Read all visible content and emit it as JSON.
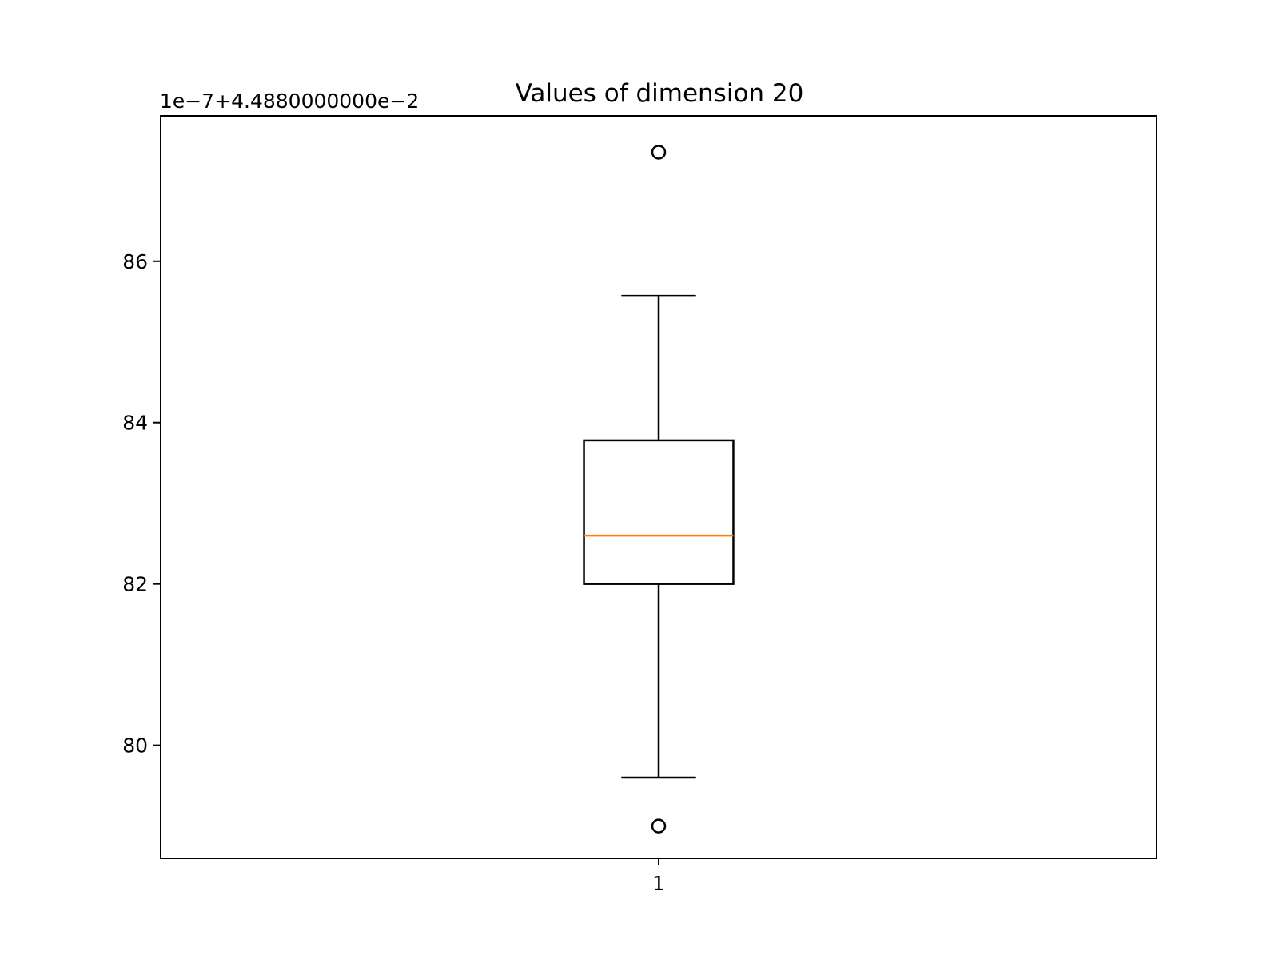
{
  "chart_data": {
    "type": "boxplot",
    "title": "Values of dimension 20",
    "xlabel": "",
    "ylabel": "",
    "y_offset_label": "1e−7+4.4880000000e−2",
    "categories": [
      "1"
    ],
    "ylim": [
      78.6,
      87.8
    ],
    "yticks": [
      80,
      82,
      84,
      86
    ],
    "boxes": [
      {
        "category": "1",
        "whisker_low": 79.6,
        "q1": 82.0,
        "median": 82.6,
        "q3": 83.78,
        "whisker_high": 85.57,
        "outliers": [
          87.35,
          79.0
        ]
      }
    ],
    "colors": {
      "box": "#000000",
      "median": "#ff7f0e",
      "outlier": "#000000"
    },
    "grid": false
  }
}
